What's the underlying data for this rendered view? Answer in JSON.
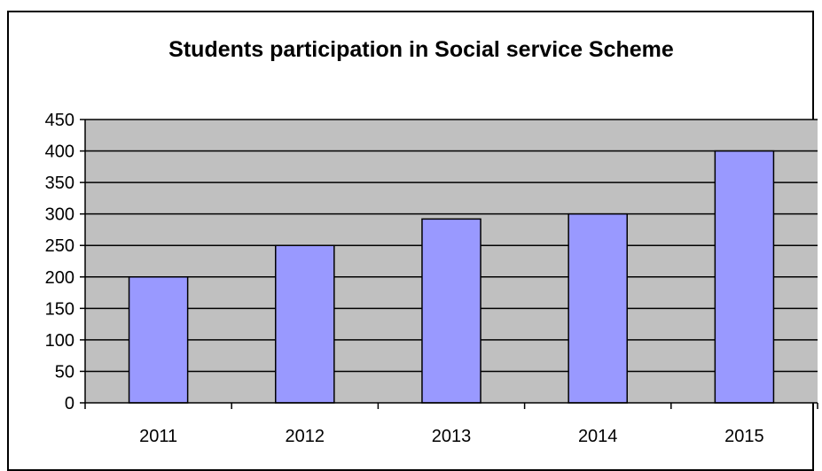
{
  "chart_data": {
    "type": "bar",
    "title": "Students participation in Social service Scheme",
    "xlabel": "",
    "ylabel": "",
    "categories": [
      "2011",
      "2012",
      "2013",
      "2014",
      "2015"
    ],
    "values": [
      200,
      250,
      292,
      300,
      400
    ],
    "ylim": [
      0,
      450
    ],
    "ytick_step": 50,
    "grid": true,
    "legend": "none",
    "colors": {
      "plot_background": "#c0c0c0",
      "bar_fill": "#9999ff",
      "bar_stroke": "#000000",
      "gridline": "#000000",
      "axis": "#000000"
    }
  }
}
